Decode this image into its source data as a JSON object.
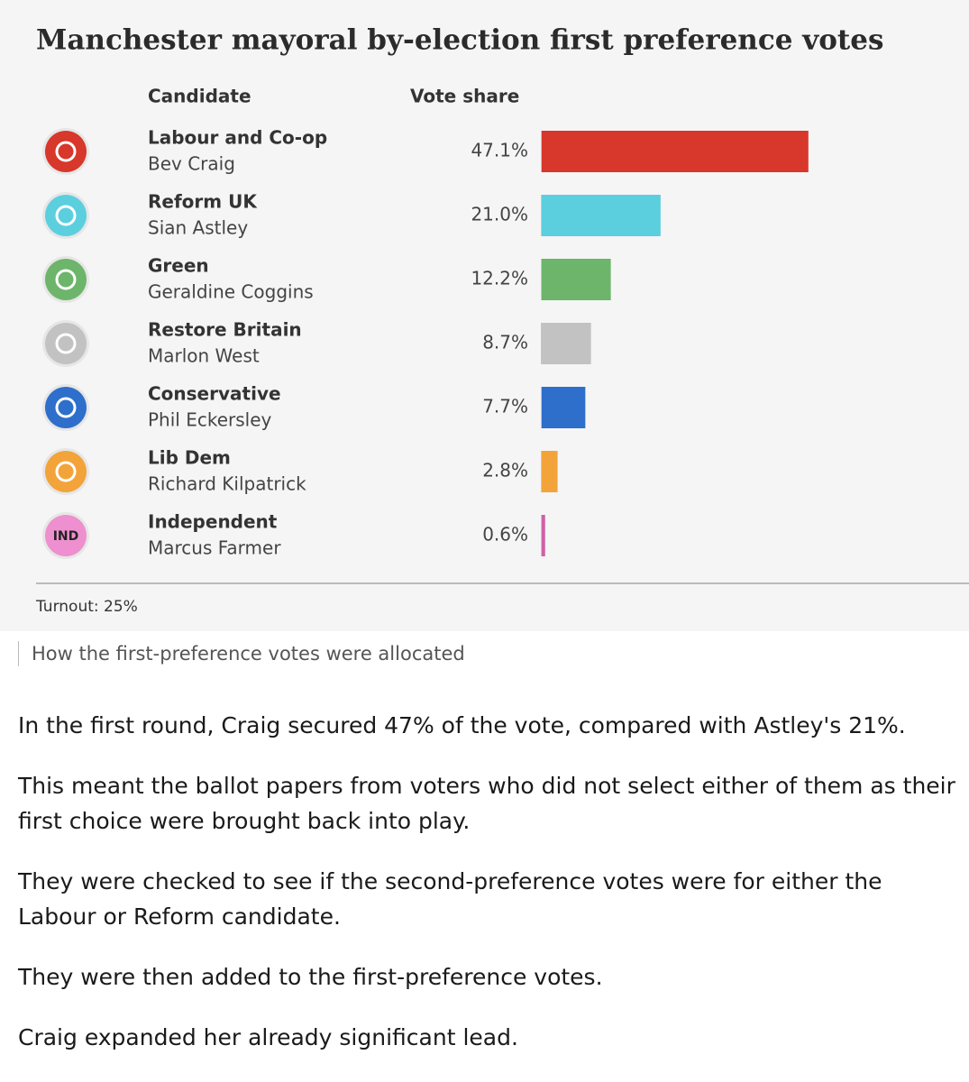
{
  "chart_data": {
    "type": "bar",
    "orientation": "horizontal",
    "title": "Manchester mayoral by-election first preference votes",
    "column_headers": [
      "Candidate",
      "Vote share"
    ],
    "categories": [
      "Labour and Co-op",
      "Reform UK",
      "Green",
      "Restore Britain",
      "Conservative",
      "Lib Dem",
      "Independent"
    ],
    "candidates": [
      "Bev Craig",
      "Sian Astley",
      "Geraldine Coggins",
      "Marlon West",
      "Phil Eckersley",
      "Richard Kilpatrick",
      "Marcus Farmer"
    ],
    "values": [
      47.1,
      21.0,
      12.2,
      8.7,
      7.7,
      2.8,
      0.6
    ],
    "value_labels": [
      "47.1%",
      "21.0%",
      "12.2%",
      "8.7%",
      "7.7%",
      "2.8%",
      "0.6%"
    ],
    "colors": [
      "#d8372c",
      "#5ccfdf",
      "#6db56b",
      "#c2c2c2",
      "#2e6fcb",
      "#f2a43a",
      "#d060a8"
    ],
    "icon_text": "IND",
    "note": "Turnout: 25%"
  },
  "article": {
    "caption": "How the first-preference votes were allocated",
    "paragraphs": [
      "In the first round, Craig secured 47% of the vote, compared with Astley's 21%.",
      "This meant the ballot papers from voters who did not select either of them as their first choice were brought back into play.",
      "They were checked to see if the second-preference votes were for either the Labour or Reform candidate.",
      "They were then added to the first-preference votes.",
      "Craig expanded her already significant lead."
    ]
  }
}
